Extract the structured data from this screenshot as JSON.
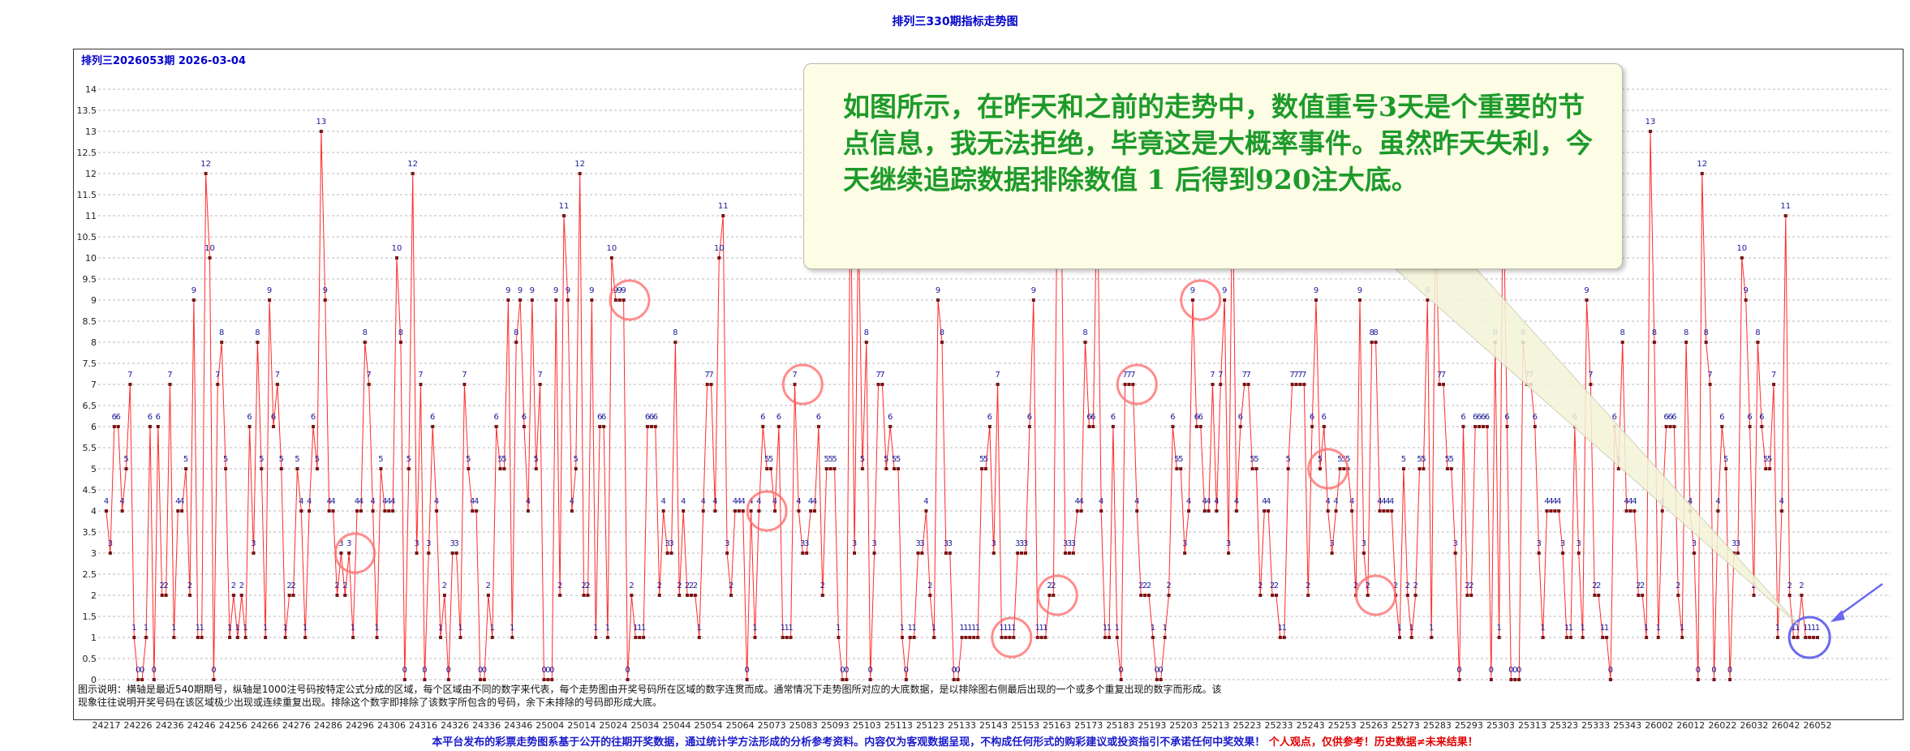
{
  "page": {
    "title": "排列三330期指标走势图",
    "period_label": "排列三2026053期  2026-03-04",
    "explanation": "图示说明：横轴是最近540期期号，纵轴是1000注号码按特定公式分成的区域，每个区域由不同的数字来代表，每个走势图由开奖号码所在区域的数字连贯而成。通常情况下走势图所对应的大底数据，是以排除图右侧最后出现的一个或多个重复出现的数字而形成。该现象往往说明开奖号码在该区域极少出现或连续重复出现。排除这个数字即排除了该数字所包含的号码，余下未排除的号码即形成大底。",
    "disclaimer_main": "本平台发布的彩票走势图系基于公开的往期开奖数据，通过统计学方法形成的分析参考资料。内容仅为客观数据呈现，不构成任何形式的购彩建议或投资指引不承诺任何中奖效果！",
    "disclaimer_warning": "个人观点，仅供参考！历史数据≠未来结果！",
    "callout_text": "如图所示，在昨天和之前的走势中，数值重号3天是个重要的节点信息，我无法拒绝，毕竟这是大概率事件。虽然昨天失利，今天继续追踪数据排除数值 1 后得到920注大底。"
  },
  "colors": {
    "line": "#ff2a2a",
    "marker": "#7a1515",
    "value_label": "#1a1a99",
    "circle": "#ff6f6f",
    "circle_latest": "#6a6af0",
    "callout_text": "#1e9a2a"
  },
  "chart_data": {
    "type": "line",
    "title": "排列三330期指标走势图",
    "ylim": [
      0,
      14
    ],
    "y_ticks": [
      "0",
      "0.5",
      "1",
      "1.5",
      "2",
      "2.5",
      "3",
      "3.5",
      "4",
      "4.5",
      "5",
      "5.5",
      "6",
      "6.5",
      "7",
      "7.5",
      "8",
      "8.5",
      "9",
      "9.5",
      "10",
      "10.5",
      "11",
      "11.5",
      "12",
      "12.5",
      "13",
      "13.5",
      "14"
    ],
    "x_ticks": [
      "24217",
      "24226",
      "24236",
      "24246",
      "24256",
      "24266",
      "24276",
      "24286",
      "24296",
      "24306",
      "24316",
      "24326",
      "24336",
      "24346",
      "25004",
      "25014",
      "25024",
      "25034",
      "25044",
      "25054",
      "25064",
      "25073",
      "25083",
      "25093",
      "25103",
      "25113",
      "25123",
      "25133",
      "25143",
      "25153",
      "25163",
      "25173",
      "25183",
      "25193",
      "25203",
      "25213",
      "25223",
      "25233",
      "25243",
      "25253",
      "25263",
      "25273",
      "25283",
      "25293",
      "25303",
      "25313",
      "25323",
      "25333",
      "25343",
      "26002",
      "26012",
      "26022",
      "26032",
      "26042",
      "26052"
    ],
    "grid": true,
    "values": [
      4,
      3,
      6,
      6,
      4,
      5,
      7,
      1,
      0,
      0,
      1,
      6,
      0,
      6,
      2,
      2,
      7,
      1,
      4,
      4,
      5,
      2,
      9,
      1,
      1,
      12,
      10,
      0,
      7,
      8,
      5,
      1,
      2,
      1,
      2,
      1,
      6,
      3,
      8,
      5,
      1,
      9,
      6,
      7,
      5,
      1,
      2,
      2,
      5,
      4,
      1,
      4,
      6,
      5,
      13,
      9,
      4,
      4,
      2,
      3,
      2,
      3,
      1,
      4,
      4,
      8,
      7,
      4,
      1,
      5,
      4,
      4,
      4,
      10,
      8,
      0,
      5,
      12,
      3,
      7,
      0,
      3,
      6,
      4,
      1,
      2,
      0,
      3,
      3,
      1,
      7,
      5,
      4,
      4,
      0,
      0,
      2,
      1,
      6,
      5,
      5,
      9,
      1,
      8,
      9,
      6,
      4,
      9,
      5,
      7,
      0,
      0,
      0,
      9,
      2,
      11,
      9,
      4,
      5,
      12,
      2,
      2,
      9,
      1,
      6,
      6,
      1,
      10,
      9,
      9,
      9,
      0,
      2,
      1,
      1,
      1,
      6,
      6,
      6,
      2,
      4,
      3,
      3,
      8,
      2,
      4,
      2,
      2,
      2,
      1,
      4,
      7,
      7,
      4,
      10,
      11,
      3,
      2,
      4,
      4,
      4,
      0,
      4,
      1,
      4,
      6,
      5,
      5,
      4,
      6,
      1,
      1,
      1,
      7,
      4,
      3,
      3,
      4,
      4,
      6,
      2,
      5,
      5,
      5,
      1,
      0,
      0,
      12,
      3,
      11,
      5,
      8,
      0,
      3,
      7,
      7,
      5,
      6,
      5,
      5,
      1,
      0,
      1,
      1,
      3,
      3,
      4,
      2,
      1,
      9,
      8,
      3,
      3,
      0,
      0,
      1,
      1,
      1,
      1,
      1,
      5,
      5,
      6,
      3,
      7,
      1,
      1,
      1,
      1,
      3,
      3,
      3,
      6,
      9,
      1,
      1,
      1,
      2,
      2,
      12,
      11,
      3,
      3,
      3,
      4,
      4,
      8,
      6,
      6,
      12,
      4,
      1,
      1,
      6,
      1,
      0,
      7,
      7,
      7,
      4,
      2,
      2,
      2,
      1,
      0,
      0,
      1,
      2,
      6,
      5,
      5,
      3,
      4,
      9,
      6,
      6,
      4,
      4,
      7,
      4,
      7,
      9,
      3,
      12,
      4,
      6,
      7,
      7,
      5,
      5,
      2,
      4,
      4,
      2,
      2,
      1,
      1,
      5,
      7,
      7,
      7,
      7,
      2,
      6,
      9,
      5,
      6,
      4,
      3,
      4,
      5,
      5,
      5,
      4,
      2,
      9,
      3,
      2,
      8,
      8,
      4,
      4,
      4,
      4,
      2,
      1,
      5,
      2,
      1,
      2,
      5,
      5,
      9,
      1,
      11,
      7,
      7,
      5,
      5,
      3,
      0,
      6,
      2,
      2,
      6,
      6,
      6,
      6,
      0,
      8,
      1,
      12,
      6,
      0,
      0,
      0,
      8,
      7,
      7,
      6,
      3,
      1,
      4,
      4,
      4,
      4,
      3,
      1,
      1,
      6,
      3,
      1,
      9,
      7,
      2,
      2,
      1,
      1,
      0,
      6,
      5,
      8,
      4,
      4,
      4,
      2,
      2,
      1,
      13,
      8,
      1,
      4,
      6,
      6,
      6,
      2,
      1,
      8,
      4,
      3,
      0,
      12,
      8,
      7,
      0,
      4,
      6,
      5,
      0,
      3,
      3,
      10,
      9,
      6,
      2,
      8,
      6,
      5,
      5,
      7,
      1,
      4,
      11,
      2,
      1,
      1,
      2,
      1,
      1,
      1,
      1
    ]
  }
}
